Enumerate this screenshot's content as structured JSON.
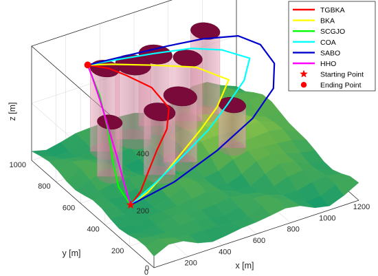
{
  "chart_data": {
    "type": "3d-path",
    "title": "",
    "xlabel": "x [m]",
    "ylabel": "y [m]",
    "zlabel": "z [m]",
    "xlim": [
      0,
      1200
    ],
    "ylim": [
      0,
      1000
    ],
    "zlim": [
      0,
      400
    ],
    "x_ticks": [
      "200",
      "400",
      "600",
      "800",
      "1000",
      "1200"
    ],
    "y_ticks": [
      "0",
      "200",
      "400",
      "600",
      "800",
      "1000"
    ],
    "z_ticks": [
      "0",
      "200",
      "400"
    ],
    "grid": true,
    "legend_position": "top-right",
    "surface": "terrain",
    "colors": {
      "terrain_low": "#1a9c6a",
      "terrain_mid": "#5fb04c",
      "terrain_high": "#c8dc45",
      "obstacle": "#7a0a3a",
      "obstacle_side": "#c07890"
    },
    "start_point": {
      "x": 150,
      "y": 400,
      "z": 40,
      "label": "Starting Point",
      "marker": "star",
      "color": "#ff0000"
    },
    "end_point": {
      "x": 300,
      "y": 960,
      "z": 290,
      "label": "Ending Point",
      "marker": "circle",
      "color": "#ff0000"
    },
    "obstacles": [
      {
        "x": 300,
        "y": 820,
        "z": 330,
        "r": 70
      },
      {
        "x": 480,
        "y": 840,
        "z": 300,
        "r": 85
      },
      {
        "x": 640,
        "y": 880,
        "z": 290,
        "r": 80
      },
      {
        "x": 200,
        "y": 640,
        "z": 230,
        "r": 60
      },
      {
        "x": 420,
        "y": 540,
        "z": 260,
        "r": 75
      },
      {
        "x": 570,
        "y": 580,
        "z": 270,
        "r": 80
      },
      {
        "x": 800,
        "y": 840,
        "z": 260,
        "r": 70
      },
      {
        "x": 910,
        "y": 850,
        "z": 330,
        "r": 70
      },
      {
        "x": 860,
        "y": 560,
        "z": 190,
        "r": 65
      }
    ],
    "series": [
      {
        "name": "TGBKA",
        "color": "#ff0000",
        "x": [
          150,
          230,
          330,
          420,
          520,
          590,
          560,
          470,
          400,
          300
        ],
        "y": [
          400,
          430,
          500,
          560,
          620,
          700,
          800,
          880,
          930,
          960
        ],
        "z": [
          40,
          60,
          90,
          120,
          150,
          180,
          220,
          250,
          270,
          290
        ]
      },
      {
        "name": "BKA",
        "color": "#ffff00",
        "x": [
          150,
          260,
          380,
          520,
          660,
          800,
          940,
          820,
          620,
          420,
          300
        ],
        "y": [
          400,
          410,
          440,
          490,
          540,
          600,
          700,
          800,
          870,
          930,
          960
        ],
        "z": [
          40,
          60,
          90,
          120,
          150,
          180,
          210,
          240,
          260,
          280,
          290
        ]
      },
      {
        "name": "SCGJO",
        "color": "#00ff00",
        "x": [
          150,
          130,
          160,
          220,
          270,
          300
        ],
        "y": [
          400,
          470,
          560,
          680,
          820,
          960
        ],
        "z": [
          40,
          80,
          130,
          180,
          240,
          290
        ]
      },
      {
        "name": "COA",
        "color": "#00ffff",
        "x": [
          150,
          330,
          530,
          720,
          880,
          1030,
          1120,
          1000,
          850,
          650,
          460,
          300
        ],
        "y": [
          400,
          440,
          500,
          560,
          630,
          700,
          780,
          840,
          880,
          910,
          940,
          960
        ],
        "z": [
          40,
          70,
          100,
          130,
          160,
          190,
          220,
          250,
          270,
          280,
          285,
          290
        ]
      },
      {
        "name": "SABO",
        "color": "#0000cd",
        "x": [
          150,
          420,
          700,
          950,
          1130,
          1200,
          1190,
          1110,
          930,
          740,
          520,
          300
        ],
        "y": [
          400,
          420,
          460,
          520,
          600,
          690,
          790,
          860,
          900,
          920,
          940,
          960
        ],
        "z": [
          40,
          60,
          100,
          140,
          180,
          220,
          250,
          270,
          280,
          285,
          288,
          290
        ]
      },
      {
        "name": "HHO",
        "color": "#ff00ff",
        "x": [
          150,
          170,
          200,
          230,
          260,
          290,
          300
        ],
        "y": [
          400,
          480,
          580,
          690,
          800,
          910,
          960
        ],
        "z": [
          40,
          80,
          130,
          180,
          230,
          270,
          290
        ]
      }
    ]
  }
}
